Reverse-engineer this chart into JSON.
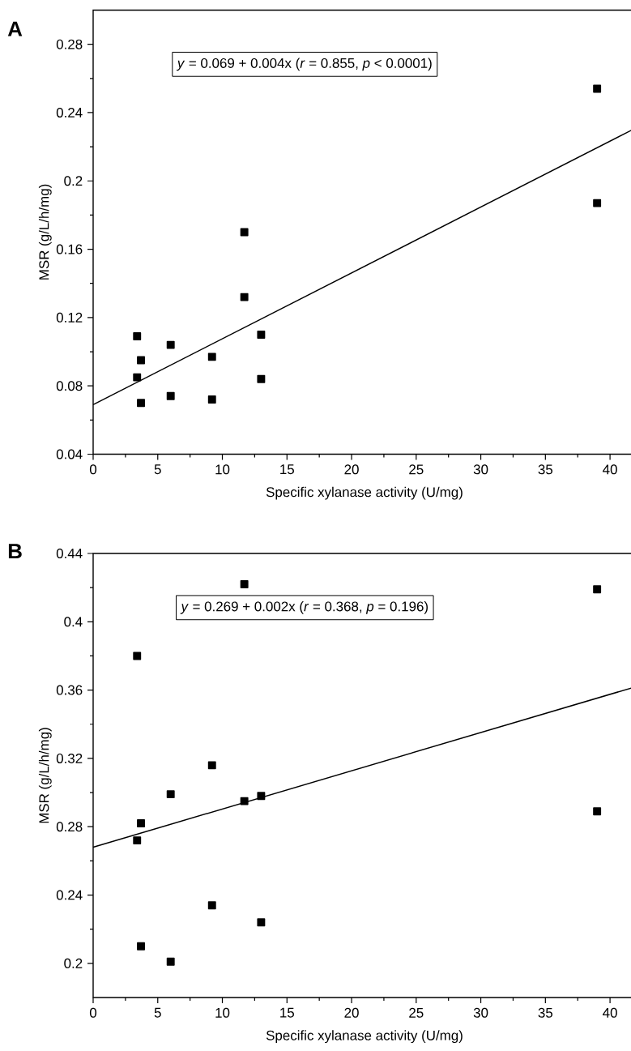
{
  "chart_data": [
    {
      "type": "scatter",
      "title": "A",
      "xlabel": "Specific xylanase activity (U/mg)",
      "ylabel": "MSR (g/L/h/mg)",
      "xlim": [
        0,
        42
      ],
      "ylim": [
        0.04,
        0.3
      ],
      "xticks": [
        0,
        5,
        10,
        15,
        20,
        25,
        30,
        35,
        40
      ],
      "yticks": [
        0.04,
        0.08,
        0.12,
        0.16,
        0.2,
        0.24,
        0.28
      ],
      "annotations": [
        "*y* = 0.069 + 0.004x (*r* = 0.855, *p* < 0.0001)"
      ],
      "series": [
        {
          "marker": "square",
          "color": "#000000",
          "x": [
            3.4,
            3.7,
            3.4,
            3.7,
            6.0,
            6.0,
            9.2,
            9.2,
            11.7,
            13.0,
            13.0,
            11.7,
            39.0,
            39.0
          ],
          "values": [
            0.109,
            0.095,
            0.085,
            0.07,
            0.104,
            0.074,
            0.097,
            0.072,
            0.132,
            0.11,
            0.084,
            0.17,
            0.254,
            0.187
          ]
        },
        {
          "type": "line",
          "marker": "none",
          "color": "#000000",
          "x": [
            0,
            42
          ],
          "values": [
            0.069,
            0.231
          ]
        }
      ]
    },
    {
      "type": "scatter",
      "title": "B",
      "xlabel": "Specific xylanase activity (U/mg)",
      "ylabel": "MSR (g/L/h/mg)",
      "xlim": [
        0,
        42
      ],
      "ylim": [
        0.18,
        0.44
      ],
      "xticks": [
        0,
        5,
        10,
        15,
        20,
        25,
        30,
        35,
        40
      ],
      "yticks": [
        0.2,
        0.24,
        0.28,
        0.32,
        0.36,
        0.4,
        0.44
      ],
      "annotations": [
        "*y* = 0.269 + 0.002x (*r* = 0.368, *p* = 0.196)"
      ],
      "series": [
        {
          "marker": "square",
          "color": "#000000",
          "x": [
            11.7,
            39.0,
            3.4,
            9.2,
            6.0,
            11.7,
            13.0,
            39.0,
            3.7,
            3.4,
            9.2,
            13.0,
            3.7,
            6.0
          ],
          "values": [
            0.422,
            0.419,
            0.38,
            0.316,
            0.299,
            0.295,
            0.298,
            0.289,
            0.282,
            0.272,
            0.234,
            0.224,
            0.21,
            0.201
          ]
        },
        {
          "type": "line",
          "marker": "none",
          "color": "#000000",
          "x": [
            0,
            42
          ],
          "values": [
            0.268,
            0.362
          ]
        }
      ]
    }
  ]
}
